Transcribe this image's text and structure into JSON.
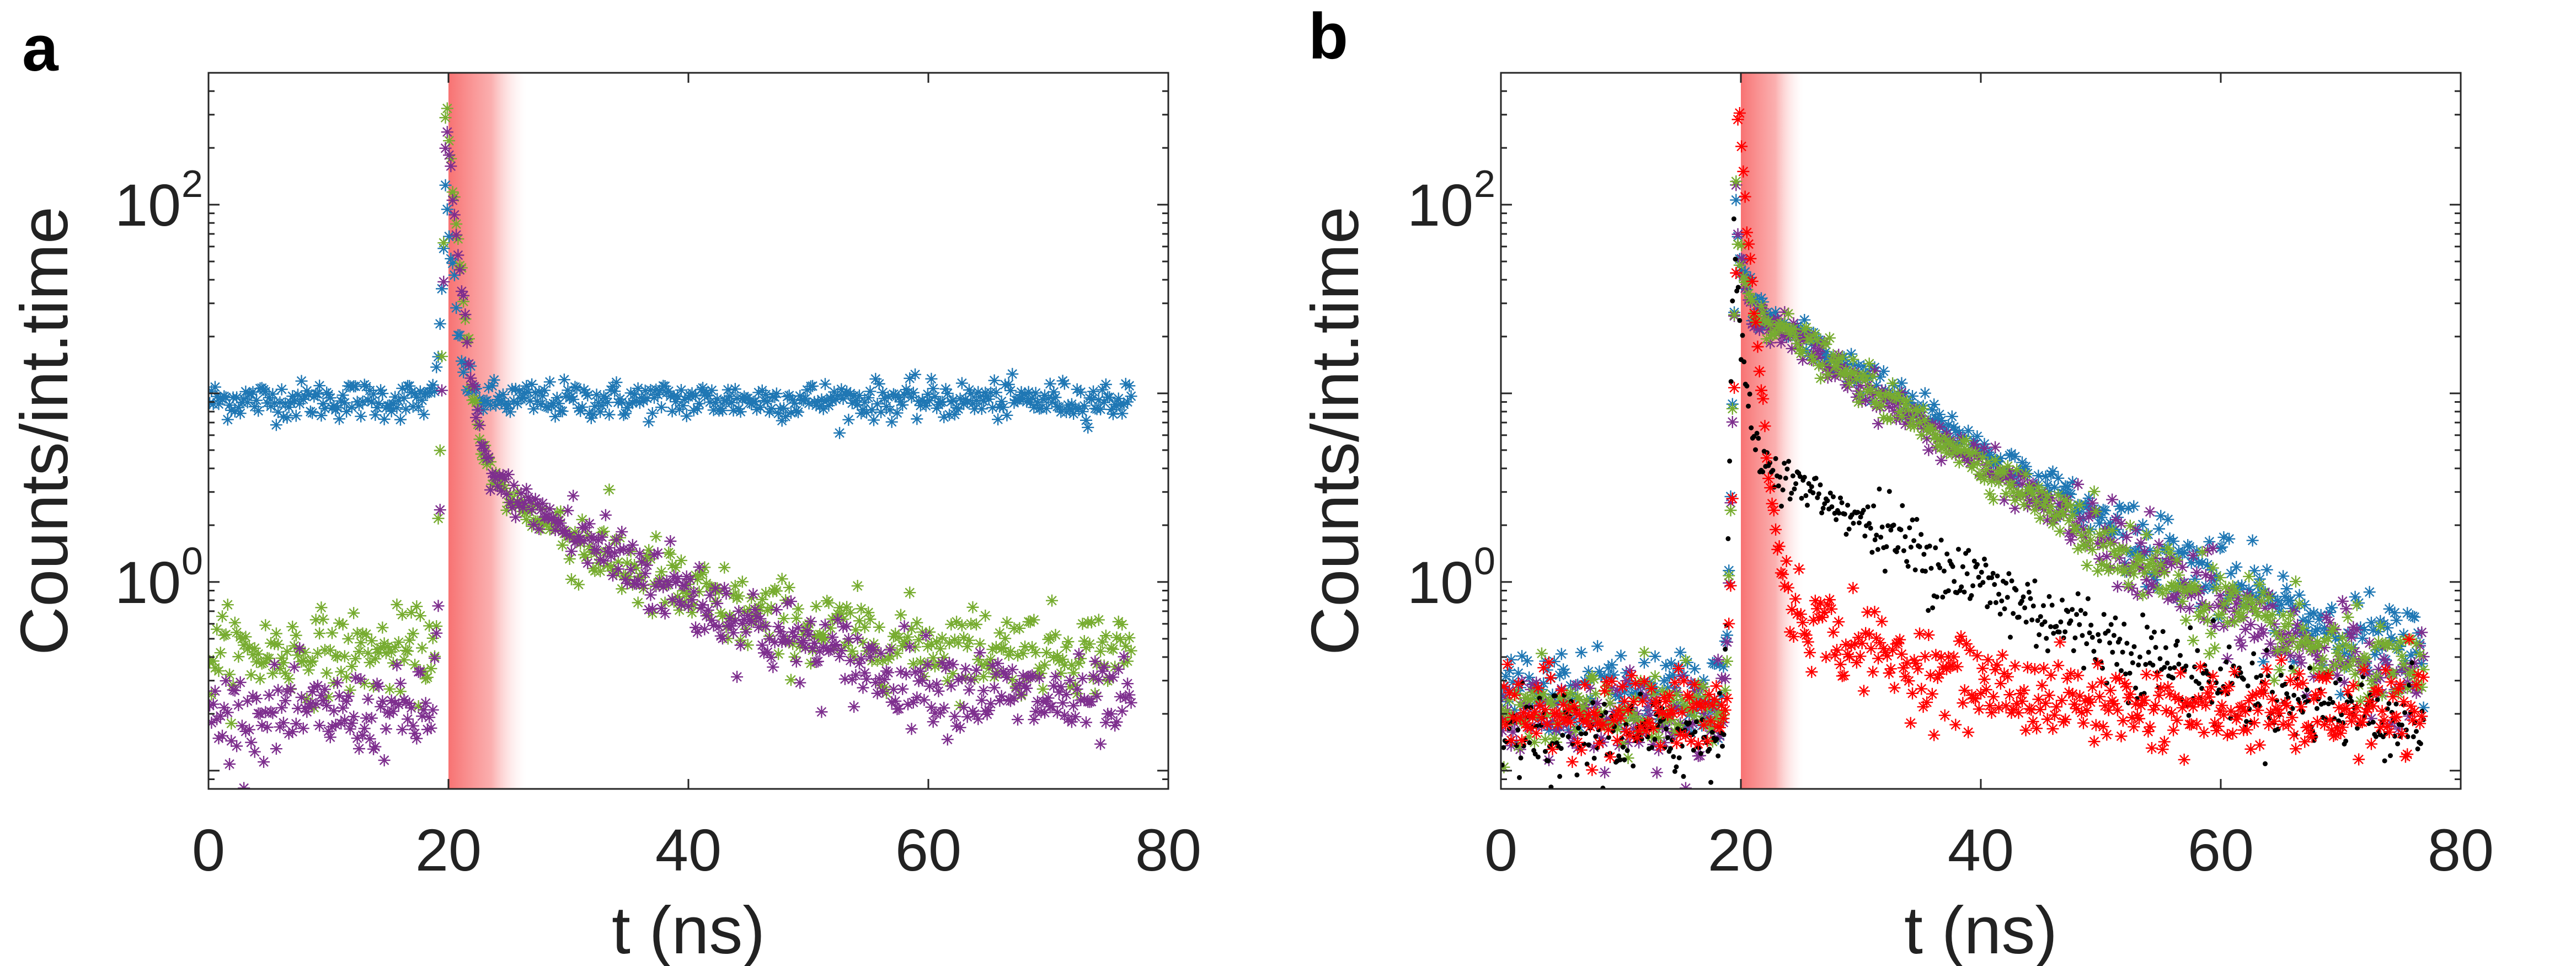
{
  "chart_data": [
    {
      "type": "scatter",
      "panel": "a",
      "xlabel": "t (ns)",
      "ylabel": "Counts/int.time",
      "yscale": "log",
      "xlim": [
        0,
        80
      ],
      "ylim": [
        0.08,
        500
      ],
      "xticks": [
        0,
        20,
        40,
        60,
        80
      ],
      "yticks": [
        {
          "base": "10",
          "exp": "0",
          "value": 1
        },
        {
          "base": "10",
          "exp": "2",
          "value": 100
        }
      ],
      "grid": false,
      "legend": "none",
      "highlight_band": {
        "x_start": 20,
        "x_end": 26.5,
        "color": "#f76b6b"
      },
      "series": [
        {
          "color": "#1f77b4",
          "marker": "*",
          "baseline": 9.2,
          "pulse_t": 19.8,
          "peak": 130,
          "fast_tau": 0.45,
          "fast_amp": 120,
          "slow_amp": 0,
          "slow_tau": 1,
          "end_t": 77
        },
        {
          "color": "#77ac30",
          "marker": "*",
          "baseline": 0.42,
          "pulse_t": 19.8,
          "peak": 500,
          "fast_tau": 0.6,
          "fast_amp": 300,
          "slow_amp": 4.2,
          "slow_tau": 9.0,
          "end_t": 77
        },
        {
          "color": "#7e2f8e",
          "marker": "*",
          "baseline": 0.2,
          "pulse_t": 19.8,
          "peak": 420,
          "fast_tau": 0.6,
          "fast_amp": 260,
          "slow_amp": 4.5,
          "slow_tau": 10.5,
          "end_t": 77
        }
      ]
    },
    {
      "type": "scatter",
      "panel": "b",
      "xlabel": "t (ns)",
      "ylabel": "Counts/int.time",
      "yscale": "log",
      "xlim": [
        0,
        80
      ],
      "ylim": [
        0.08,
        500
      ],
      "xticks": [
        0,
        20,
        40,
        60,
        80
      ],
      "yticks": [
        {
          "base": "10",
          "exp": "0",
          "value": 1
        },
        {
          "base": "10",
          "exp": "2",
          "value": 100
        }
      ],
      "grid": false,
      "legend": "none",
      "highlight_band": {
        "x_start": 20,
        "x_end": 25.2,
        "color": "#f76b6b"
      },
      "series": [
        {
          "color": "#1f77b4",
          "marker": "*",
          "baseline": 0.26,
          "pulse_t": 19.6,
          "peak": 110,
          "fast_tau": 0.5,
          "fast_amp": 40,
          "slow_amp": 32,
          "slow_tau": 10.8,
          "end_t": 77
        },
        {
          "color": "#7e2f8e",
          "marker": "*",
          "baseline": 0.2,
          "pulse_t": 19.6,
          "peak": 110,
          "fast_tau": 0.5,
          "fast_amp": 40,
          "slow_amp": 31,
          "slow_tau": 10.0,
          "end_t": 77
        },
        {
          "color": "#77ac30",
          "marker": "*",
          "baseline": 0.2,
          "pulse_t": 19.6,
          "peak": 120,
          "fast_tau": 0.5,
          "fast_amp": 40,
          "slow_amp": 32,
          "slow_tau": 9.9,
          "end_t": 77
        },
        {
          "color": "#000000",
          "marker": ".",
          "baseline": 0.15,
          "pulse_t": 19.4,
          "peak": 95,
          "fast_tau": 0.45,
          "fast_amp": 60,
          "slow_amp": 5.0,
          "slow_tau": 11.5,
          "end_t": 77
        },
        {
          "color": "#ff0000",
          "marker": "*",
          "baseline": 0.2,
          "pulse_t": 19.8,
          "peak": 500,
          "fast_tau": 0.55,
          "fast_amp": 300,
          "slow_amp": 0.8,
          "slow_tau": 9.0,
          "end_t": 77
        }
      ]
    }
  ]
}
